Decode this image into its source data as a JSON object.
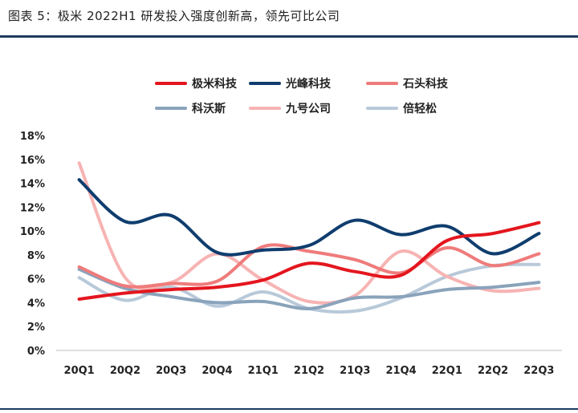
{
  "title": "图表 5：极米 2022H1 研发投入强度创新高，领先可比公司",
  "chart_data": {
    "type": "line",
    "title": "图表 5：极米 2022H1 研发投入强度创新高，领先可比公司",
    "xlabel": "",
    "ylabel": "",
    "categories": [
      "20Q1",
      "20Q2",
      "20Q3",
      "20Q4",
      "21Q1",
      "21Q2",
      "21Q3",
      "21Q4",
      "22Q1",
      "22Q2",
      "22Q3"
    ],
    "ylim": [
      0,
      18
    ],
    "yticks": [
      0,
      2,
      4,
      6,
      8,
      10,
      12,
      14,
      16,
      18
    ],
    "ytick_labels": [
      "0%",
      "2%",
      "4%",
      "6%",
      "8%",
      "10%",
      "12%",
      "14%",
      "16%",
      "18%"
    ],
    "grid": false,
    "legend_position": "top",
    "series": [
      {
        "name": "极米科技",
        "color": "#e4161e",
        "values": [
          4.3,
          4.8,
          5.1,
          5.3,
          5.9,
          7.3,
          6.6,
          6.3,
          9.2,
          9.8,
          10.7
        ]
      },
      {
        "name": "光峰科技",
        "color": "#0f3d6e",
        "values": [
          14.3,
          10.8,
          11.3,
          8.2,
          8.4,
          8.8,
          10.9,
          9.7,
          10.4,
          8.1,
          9.8
        ]
      },
      {
        "name": "石头科技",
        "color": "#ef7b7b",
        "values": [
          7.0,
          5.4,
          5.6,
          5.8,
          8.7,
          8.3,
          7.6,
          6.5,
          8.6,
          7.1,
          8.1
        ]
      },
      {
        "name": "科沃斯",
        "color": "#8aa3bb",
        "values": [
          6.8,
          5.2,
          4.5,
          4.0,
          4.1,
          3.5,
          4.4,
          4.5,
          5.1,
          5.3,
          5.7
        ]
      },
      {
        "name": "九号公司",
        "color": "#f7b3b3",
        "values": [
          15.7,
          6.1,
          5.7,
          8.1,
          5.9,
          4.1,
          4.6,
          8.3,
          6.2,
          5.0,
          5.2
        ]
      },
      {
        "name": "倍轻松",
        "color": "#b8c9d9",
        "values": [
          6.1,
          4.2,
          5.3,
          3.7,
          4.9,
          3.5,
          3.3,
          4.4,
          6.2,
          7.1,
          7.2
        ]
      }
    ]
  }
}
